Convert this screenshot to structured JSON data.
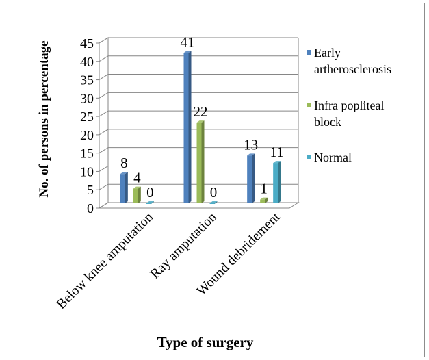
{
  "chart_data": {
    "type": "bar",
    "title": "",
    "xlabel": "Type of surgery",
    "ylabel": "No. of persons in percentage",
    "categories": [
      "Below knee amputation",
      "Ray amputation",
      "Wound debridement"
    ],
    "series": [
      {
        "name": "Early artherosclerosis",
        "values": [
          8,
          41,
          13
        ],
        "color": "#4F81BD"
      },
      {
        "name": "Infra popliteal block",
        "values": [
          4,
          22,
          1
        ],
        "color": "#9BBB59"
      },
      {
        "name": "Normal",
        "values": [
          0,
          0,
          11
        ],
        "color": "#4BACC6"
      }
    ],
    "ylim": [
      0,
      45
    ],
    "yticks": [
      0,
      5,
      10,
      15,
      20,
      25,
      30,
      35,
      40,
      45
    ],
    "grid": true,
    "legend": "right",
    "three_d": true
  }
}
